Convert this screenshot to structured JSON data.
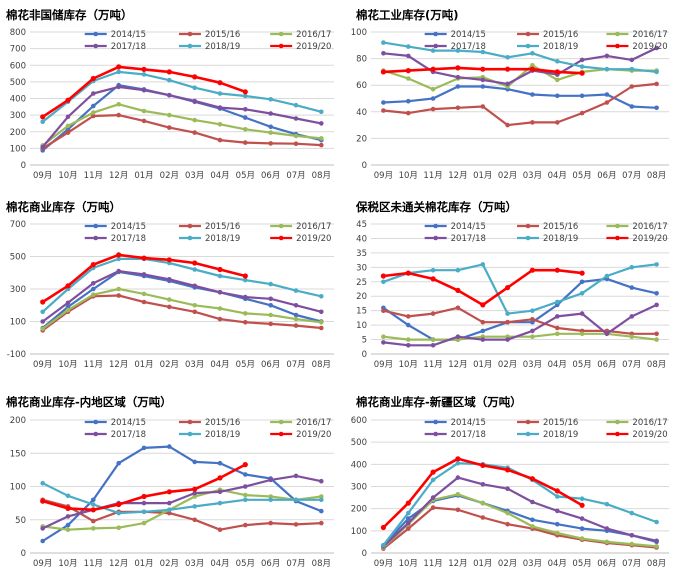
{
  "months": [
    "09月",
    "10月",
    "11月",
    "12月",
    "01月",
    "02月",
    "03月",
    "04月",
    "05月",
    "06月",
    "07月",
    "08月"
  ],
  "series_names": [
    "2014/15",
    "2015/16",
    "2016/17",
    "2017/18",
    "2018/19",
    "2019/20"
  ],
  "series_colors": [
    "#4472C4",
    "#C0504D",
    "#9BBB59",
    "#7F4F9F",
    "#4BACC6",
    "#FF0000"
  ],
  "chart_data": [
    {
      "type": "line",
      "title": "棉花非国储库存（万吨）",
      "categories": [
        "09月",
        "10月",
        "11月",
        "12月",
        "01月",
        "02月",
        "03月",
        "04月",
        "05月",
        "06月",
        "07月",
        "08月"
      ],
      "ylim": [
        0,
        800
      ],
      "yticks": [
        0,
        100,
        200,
        300,
        400,
        500,
        600,
        700,
        800
      ],
      "legend": "top",
      "series": [
        {
          "name": "2014/15",
          "values": [
            88,
            215,
            355,
            480,
            455,
            420,
            380,
            340,
            285,
            230,
            185,
            150
          ]
        },
        {
          "name": "2015/16",
          "values": [
            100,
            195,
            295,
            300,
            265,
            225,
            195,
            150,
            135,
            130,
            128,
            120
          ]
        },
        {
          "name": "2016/17",
          "values": [
            118,
            235,
            315,
            365,
            325,
            300,
            270,
            245,
            215,
            195,
            175,
            160
          ]
        },
        {
          "name": "2017/18",
          "values": [
            108,
            290,
            430,
            470,
            450,
            420,
            385,
            345,
            335,
            310,
            280,
            250
          ]
        },
        {
          "name": "2018/19",
          "values": [
            260,
            380,
            505,
            560,
            545,
            510,
            465,
            430,
            415,
            395,
            360,
            320
          ]
        },
        {
          "name": "2019/20",
          "values": [
            290,
            390,
            520,
            590,
            575,
            560,
            530,
            495,
            440,
            null,
            null,
            null
          ]
        }
      ]
    },
    {
      "type": "line",
      "title": "棉花工业库存(万吨)",
      "categories": [
        "09月",
        "10月",
        "11月",
        "12月",
        "01月",
        "02月",
        "03月",
        "04月",
        "05月",
        "06月",
        "07月",
        "08月"
      ],
      "ylim": [
        0,
        100
      ],
      "yticks": [
        0,
        20,
        40,
        60,
        80,
        100
      ],
      "legend": "top",
      "series": [
        {
          "name": "2014/15",
          "values": [
            47,
            48,
            50,
            59,
            59,
            57,
            53,
            52,
            52,
            53,
            44,
            43
          ]
        },
        {
          "name": "2015/16",
          "values": [
            41,
            39,
            42,
            43,
            44,
            30,
            32,
            32,
            39,
            47,
            59,
            61
          ]
        },
        {
          "name": "2016/17",
          "values": [
            71,
            65,
            57,
            65,
            66,
            59,
            75,
            64,
            70,
            72,
            71,
            71
          ]
        },
        {
          "name": "2017/18",
          "values": [
            84,
            82,
            70,
            66,
            64,
            61,
            71,
            68,
            79,
            82,
            79,
            88
          ]
        },
        {
          "name": "2018/19",
          "values": [
            92,
            89,
            86,
            86,
            85,
            81,
            84,
            78,
            74,
            72,
            72,
            70
          ]
        },
        {
          "name": "2019/20",
          "values": [
            70,
            71,
            72,
            73,
            72,
            72,
            72,
            70,
            69,
            null,
            null,
            null
          ]
        }
      ]
    },
    {
      "type": "line",
      "title": "棉花商业库存（万吨）",
      "categories": [
        "09月",
        "10月",
        "11月",
        "12月",
        "01月",
        "02月",
        "03月",
        "04月",
        "05月",
        "06月",
        "07月",
        "08月"
      ],
      "ylim": [
        -100,
        700
      ],
      "yticks": [
        -100,
        100,
        300,
        500,
        700
      ],
      "legend": "top",
      "series": [
        {
          "name": "2014/15",
          "values": [
            60,
            190,
            300,
            405,
            380,
            350,
            310,
            280,
            240,
            200,
            140,
            100
          ]
        },
        {
          "name": "2015/16",
          "values": [
            45,
            160,
            255,
            260,
            220,
            190,
            160,
            115,
            95,
            85,
            75,
            60
          ]
        },
        {
          "name": "2016/17",
          "values": [
            55,
            170,
            265,
            300,
            270,
            235,
            200,
            180,
            150,
            140,
            115,
            95
          ]
        },
        {
          "name": "2017/18",
          "values": [
            100,
            215,
            335,
            410,
            390,
            360,
            320,
            280,
            250,
            240,
            200,
            160
          ]
        },
        {
          "name": "2018/19",
          "values": [
            160,
            300,
            430,
            485,
            485,
            460,
            420,
            380,
            355,
            330,
            290,
            255
          ]
        },
        {
          "name": "2019/20",
          "values": [
            220,
            320,
            450,
            510,
            490,
            480,
            460,
            420,
            380,
            null,
            null,
            null
          ]
        }
      ]
    },
    {
      "type": "line",
      "title": "保税区未通关棉花库存（万吨）",
      "categories": [
        "09月",
        "10月",
        "11月",
        "12月",
        "01月",
        "02月",
        "03月",
        "04月",
        "05月",
        "06月",
        "07月",
        "08月"
      ],
      "ylim": [
        0,
        45
      ],
      "yticks": [
        0,
        5,
        10,
        15,
        20,
        25,
        30,
        35,
        40,
        45
      ],
      "legend": "top",
      "series": [
        {
          "name": "2014/15",
          "values": [
            16,
            10,
            5,
            5,
            8,
            11,
            11,
            17,
            25,
            26,
            23,
            21
          ]
        },
        {
          "name": "2015/16",
          "values": [
            15,
            13,
            14,
            16,
            11,
            11,
            12,
            9,
            8,
            8,
            7,
            7
          ]
        },
        {
          "name": "2016/17",
          "values": [
            6,
            5,
            5,
            5,
            6,
            6,
            6,
            7,
            7,
            7,
            6,
            5
          ]
        },
        {
          "name": "2017/18",
          "values": [
            4,
            3,
            3,
            6,
            5,
            5,
            8,
            13,
            14,
            7,
            13,
            17
          ]
        },
        {
          "name": "2018/19",
          "values": [
            25,
            28,
            29,
            29,
            31,
            14,
            15,
            18,
            21,
            27,
            30,
            31
          ]
        },
        {
          "name": "2019/20",
          "values": [
            27,
            28,
            26,
            22,
            17,
            23,
            29,
            29,
            28,
            null,
            null,
            null
          ]
        }
      ]
    },
    {
      "type": "line",
      "title": "棉花商业库存-内地区域（万吨）",
      "categories": [
        "09月",
        "10月",
        "11月",
        "12月",
        "01月",
        "02月",
        "03月",
        "04月",
        "05月",
        "06月",
        "07月",
        "08月"
      ],
      "ylim": [
        0,
        200
      ],
      "yticks": [
        0,
        50,
        100,
        150,
        200
      ],
      "legend": "top",
      "series": [
        {
          "name": "2014/15",
          "values": [
            18,
            42,
            80,
            135,
            158,
            160,
            137,
            135,
            118,
            112,
            78,
            63
          ]
        },
        {
          "name": "2015/16",
          "values": [
            80,
            70,
            48,
            62,
            62,
            60,
            50,
            35,
            42,
            45,
            43,
            45
          ]
        },
        {
          "name": "2016/17",
          "values": [
            40,
            35,
            37,
            38,
            45,
            65,
            85,
            95,
            87,
            85,
            80,
            85
          ]
        },
        {
          "name": "2017/18",
          "values": [
            37,
            55,
            65,
            75,
            75,
            75,
            90,
            92,
            100,
            110,
            116,
            108
          ]
        },
        {
          "name": "2018/19",
          "values": [
            105,
            86,
            73,
            60,
            62,
            65,
            70,
            75,
            80,
            80,
            80,
            80
          ]
        },
        {
          "name": "2019/20",
          "values": [
            78,
            67,
            65,
            73,
            85,
            92,
            96,
            113,
            133,
            null,
            null,
            null
          ]
        }
      ]
    },
    {
      "type": "line",
      "title": "棉花商业库存-新疆区域（万吨）",
      "categories": [
        "09月",
        "10月",
        "11月",
        "12月",
        "01月",
        "02月",
        "03月",
        "04月",
        "05月",
        "06月",
        "07月",
        "08月"
      ],
      "ylim": [
        0,
        600
      ],
      "yticks": [
        0,
        100,
        200,
        300,
        400,
        500,
        600
      ],
      "legend": "top",
      "series": [
        {
          "name": "2014/15",
          "values": [
            35,
            155,
            235,
            260,
            225,
            190,
            150,
            130,
            110,
            100,
            80,
            50
          ]
        },
        {
          "name": "2015/16",
          "values": [
            20,
            110,
            205,
            195,
            160,
            130,
            110,
            80,
            60,
            45,
            35,
            25
          ]
        },
        {
          "name": "2016/17",
          "values": [
            25,
            130,
            240,
            265,
            225,
            180,
            120,
            90,
            65,
            50,
            40,
            30
          ]
        },
        {
          "name": "2017/18",
          "values": [
            30,
            135,
            250,
            340,
            310,
            290,
            230,
            190,
            155,
            110,
            80,
            55
          ]
        },
        {
          "name": "2018/19",
          "values": [
            35,
            180,
            330,
            405,
            400,
            385,
            330,
            255,
            245,
            220,
            180,
            140
          ]
        },
        {
          "name": "2019/20",
          "values": [
            115,
            225,
            365,
            425,
            395,
            375,
            335,
            280,
            215,
            null,
            null,
            null
          ]
        }
      ]
    }
  ]
}
